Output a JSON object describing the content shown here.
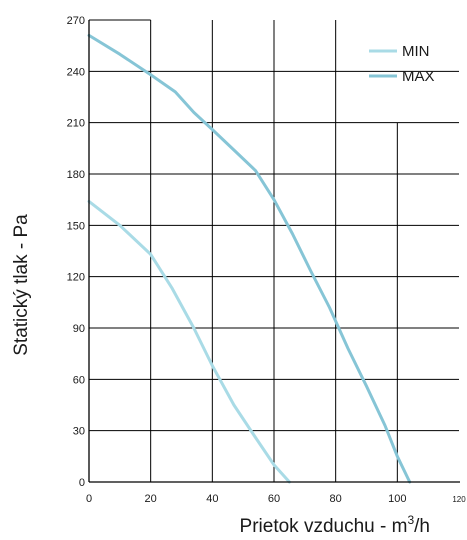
{
  "chart_data": {
    "type": "line",
    "xlabel": "Prietok vzduchu  - m",
    "xlabel_sup": "3",
    "xlabel_tail": "/h",
    "ylabel": "Statický tlak - Pa",
    "xlim": [
      0,
      120
    ],
    "ylim": [
      0,
      270
    ],
    "x_ticks": [
      0,
      20,
      40,
      60,
      80,
      100,
      120
    ],
    "y_ticks": [
      0,
      30,
      60,
      90,
      120,
      150,
      180,
      210,
      240,
      270
    ],
    "grid": true,
    "legend_position": "top-right",
    "series": [
      {
        "name": "MIN",
        "color": "#a9dbe6",
        "x": [
          0,
          10,
          20,
          27,
          34,
          40,
          47,
          54,
          60,
          65
        ],
        "y": [
          164,
          150,
          133,
          113,
          90,
          68,
          45,
          26,
          10,
          0
        ]
      },
      {
        "name": "MAX",
        "color": "#86c5d6",
        "x": [
          0,
          10,
          20,
          28,
          34,
          40,
          47,
          54,
          60,
          66,
          72,
          78,
          84,
          90,
          96,
          100,
          104
        ],
        "y": [
          261,
          250,
          238,
          228,
          216,
          206,
          194,
          182,
          165,
          145,
          123,
          102,
          78,
          56,
          33,
          15,
          0
        ]
      }
    ]
  }
}
